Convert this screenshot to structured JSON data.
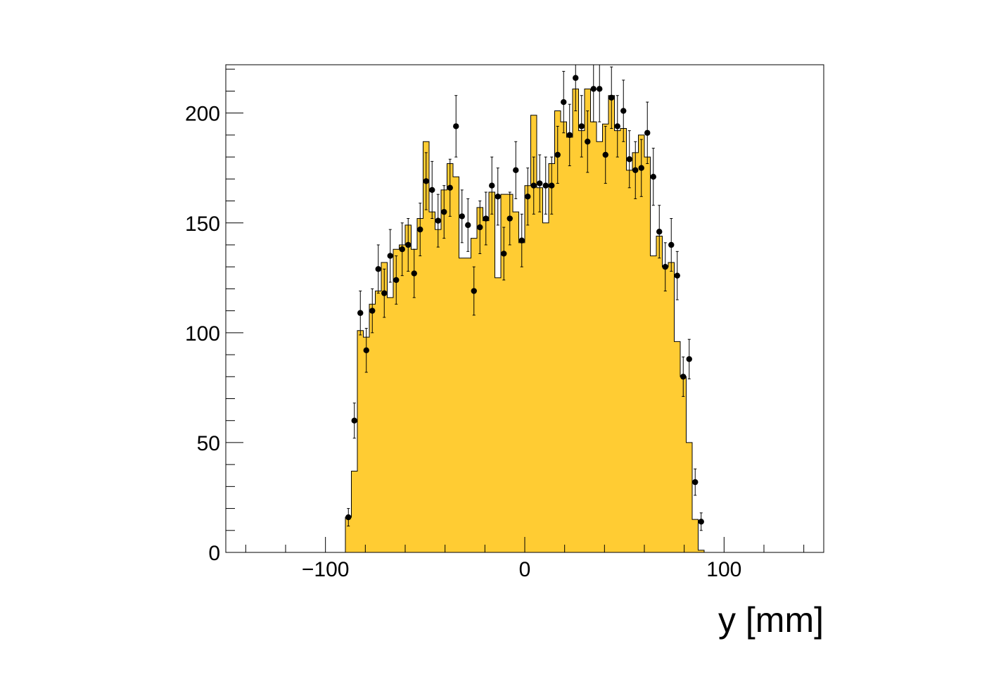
{
  "chart_data": {
    "type": "histogram",
    "title": "",
    "xlabel": "y [mm]",
    "ylabel": "",
    "xlim": [
      -150,
      150
    ],
    "ylim": [
      0,
      222
    ],
    "bin_width": 3,
    "first_bin_low_edge": -90,
    "x_ticks": [
      {
        "value": -100,
        "label": "−100"
      },
      {
        "value": 0,
        "label": "0"
      },
      {
        "value": 100,
        "label": "100"
      }
    ],
    "y_ticks": [
      {
        "value": 0,
        "label": "0"
      },
      {
        "value": 50,
        "label": "50"
      },
      {
        "value": 100,
        "label": "100"
      },
      {
        "value": 150,
        "label": "150"
      },
      {
        "value": 200,
        "label": "200"
      }
    ],
    "histogram": {
      "fill_color": "#FFCC33",
      "line_color": "#000000",
      "values": [
        16,
        37,
        101,
        98,
        113,
        119,
        132,
        116,
        138,
        140,
        149,
        138,
        152,
        187,
        155,
        147,
        165,
        177,
        171,
        134,
        134,
        143,
        157,
        151,
        164,
        125,
        163,
        163,
        155,
        141,
        167,
        199,
        166,
        150,
        177,
        201,
        196,
        189,
        211,
        192,
        211,
        196,
        187,
        195,
        208,
        192,
        193,
        174,
        182,
        190,
        180,
        135,
        144,
        130,
        132,
        96,
        80,
        50,
        15,
        1
      ]
    },
    "data_points": {
      "marker_color": "#000000",
      "x": [
        -88.5,
        -85.5,
        -82.5,
        -79.5,
        -76.5,
        -73.5,
        -70.5,
        -67.5,
        -64.5,
        -61.5,
        -58.5,
        -55.5,
        -52.5,
        -49.5,
        -46.5,
        -43.5,
        -40.5,
        -37.5,
        -34.5,
        -31.5,
        -28.5,
        -25.5,
        -22.5,
        -19.5,
        -16.5,
        -13.5,
        -10.5,
        -7.5,
        -4.5,
        -1.5,
        1.5,
        4.5,
        7.5,
        10.5,
        13.5,
        16.5,
        19.5,
        22.5,
        25.5,
        28.5,
        31.5,
        34.5,
        37.5,
        40.5,
        43.5,
        46.5,
        49.5,
        52.5,
        55.5,
        58.5,
        61.5,
        64.5,
        67.5,
        70.5,
        73.5,
        76.5,
        79.5,
        82.5,
        85.5,
        88.5
      ],
      "y": [
        16,
        60,
        109,
        92,
        110,
        129,
        118,
        135,
        124,
        138,
        140,
        127,
        147,
        169,
        165,
        151,
        155,
        166,
        194,
        153,
        149,
        119,
        148,
        152,
        167,
        162,
        136,
        152,
        174,
        142,
        162,
        167,
        168,
        167,
        167,
        181,
        205,
        190,
        216,
        194,
        187,
        211,
        211,
        181,
        207,
        194,
        201,
        179,
        174,
        175,
        191,
        171,
        146,
        130,
        140,
        126,
        80,
        88,
        32,
        14
      ],
      "y_err": [
        4,
        8,
        10,
        10,
        10,
        11,
        11,
        12,
        11,
        12,
        12,
        11,
        12,
        13,
        13,
        12,
        12,
        13,
        14,
        12,
        12,
        11,
        12,
        12,
        13,
        13,
        12,
        12,
        13,
        12,
        13,
        13,
        13,
        13,
        13,
        13,
        14,
        14,
        15,
        14,
        14,
        15,
        15,
        13,
        14,
        14,
        14,
        13,
        13,
        13,
        14,
        13,
        12,
        11,
        12,
        11,
        9,
        9,
        6,
        4
      ]
    }
  }
}
